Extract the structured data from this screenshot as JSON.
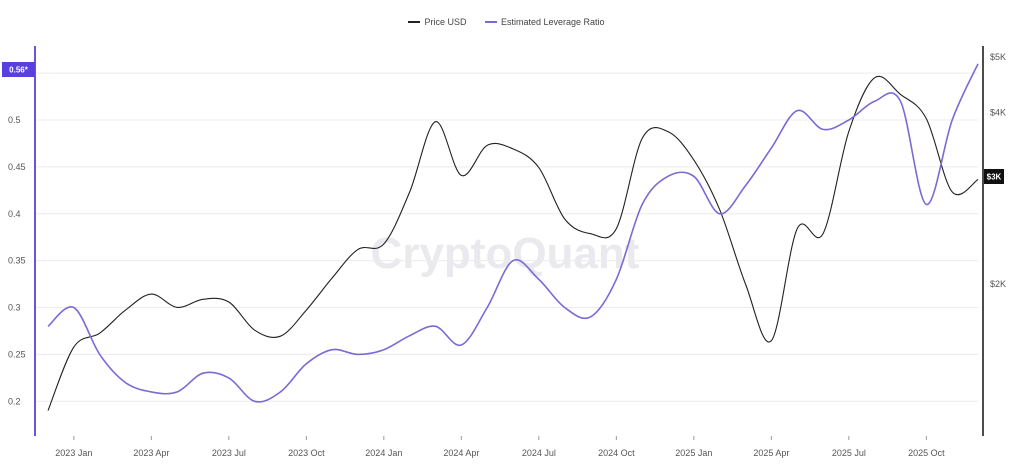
{
  "legend": {
    "price_label": "Price USD",
    "ratio_label": "Estimated Leverage Ratio"
  },
  "watermark": "CryptoQuant",
  "colors": {
    "price": "#222222",
    "ratio": "#7b6ad6",
    "badge": "#5a3fe0",
    "axis": "#6a55e0"
  },
  "chart_data": {
    "type": "line",
    "title": "",
    "x_ticks": [
      "2023 Jan",
      "2023 Apr",
      "2023 Jul",
      "2023 Oct",
      "2024 Jan",
      "2024 Apr",
      "2024 Jul",
      "2024 Oct",
      "2025 Jan",
      "2025 Apr",
      "2025 Jul",
      "2025 Oct"
    ],
    "x_range": [
      "2022-12",
      "2025-12"
    ],
    "y_left": {
      "label": "",
      "ylim": [
        0.163,
        0.58
      ],
      "ticks": [
        0.2,
        0.25,
        0.3,
        0.35,
        0.4,
        0.45,
        0.5,
        0.55
      ],
      "tick_labels": [
        "0.2",
        "0.25",
        "0.3",
        "0.35",
        "0.4",
        "0.45",
        "0.5",
        "0.55"
      ]
    },
    "y_right": {
      "label": "",
      "scale": "log",
      "ticks": [
        2000,
        3000,
        4000,
        5000
      ],
      "tick_labels": [
        "$2K",
        "$3K",
        "$4K",
        "$5K"
      ]
    },
    "current_ratio_badge": "0.56*",
    "current_price_badge": "$3K",
    "grid": "horizontal",
    "legend_position": "top",
    "series": [
      {
        "name": "Price USD",
        "axis": "right",
        "color": "#222222",
        "points": [
          [
            "2022-12",
            1200
          ],
          [
            "2023-01",
            1550
          ],
          [
            "2023-02",
            1640
          ],
          [
            "2023-03",
            1800
          ],
          [
            "2023-04",
            1920
          ],
          [
            "2023-05",
            1820
          ],
          [
            "2023-06",
            1880
          ],
          [
            "2023-07",
            1860
          ],
          [
            "2023-08",
            1660
          ],
          [
            "2023-09",
            1620
          ],
          [
            "2023-10",
            1800
          ],
          [
            "2023-11",
            2050
          ],
          [
            "2023-12",
            2300
          ],
          [
            "2024-01",
            2350
          ],
          [
            "2024-02",
            2900
          ],
          [
            "2024-03",
            3850
          ],
          [
            "2024-04",
            3100
          ],
          [
            "2024-05",
            3500
          ],
          [
            "2024-06",
            3450
          ],
          [
            "2024-07",
            3200
          ],
          [
            "2024-08",
            2600
          ],
          [
            "2024-09",
            2450
          ],
          [
            "2024-10",
            2500
          ],
          [
            "2024-11",
            3600
          ],
          [
            "2024-12",
            3700
          ],
          [
            "2025-01",
            3300
          ],
          [
            "2025-02",
            2700
          ],
          [
            "2025-03",
            2000
          ],
          [
            "2025-04",
            1590
          ],
          [
            "2025-05",
            2500
          ],
          [
            "2025-06",
            2450
          ],
          [
            "2025-07",
            3700
          ],
          [
            "2025-08",
            4600
          ],
          [
            "2025-09",
            4300
          ],
          [
            "2025-10",
            3900
          ],
          [
            "2025-11",
            2900
          ],
          [
            "2025-12",
            3050
          ]
        ]
      },
      {
        "name": "Estimated Leverage Ratio",
        "axis": "left",
        "color": "#7b6ad6",
        "points": [
          [
            "2022-12",
            0.28
          ],
          [
            "2023-01",
            0.3
          ],
          [
            "2023-02",
            0.25
          ],
          [
            "2023-03",
            0.22
          ],
          [
            "2023-04",
            0.21
          ],
          [
            "2023-05",
            0.21
          ],
          [
            "2023-06",
            0.23
          ],
          [
            "2023-07",
            0.225
          ],
          [
            "2023-08",
            0.2
          ],
          [
            "2023-09",
            0.21
          ],
          [
            "2023-10",
            0.24
          ],
          [
            "2023-11",
            0.255
          ],
          [
            "2023-12",
            0.25
          ],
          [
            "2024-01",
            0.255
          ],
          [
            "2024-02",
            0.27
          ],
          [
            "2024-03",
            0.28
          ],
          [
            "2024-04",
            0.26
          ],
          [
            "2024-05",
            0.3
          ],
          [
            "2024-06",
            0.35
          ],
          [
            "2024-07",
            0.33
          ],
          [
            "2024-08",
            0.3
          ],
          [
            "2024-09",
            0.29
          ],
          [
            "2024-10",
            0.33
          ],
          [
            "2024-11",
            0.41
          ],
          [
            "2024-12",
            0.44
          ],
          [
            "2025-01",
            0.44
          ],
          [
            "2025-02",
            0.4
          ],
          [
            "2025-03",
            0.43
          ],
          [
            "2025-04",
            0.47
          ],
          [
            "2025-05",
            0.51
          ],
          [
            "2025-06",
            0.49
          ],
          [
            "2025-07",
            0.5
          ],
          [
            "2025-08",
            0.52
          ],
          [
            "2025-09",
            0.52
          ],
          [
            "2025-10",
            0.41
          ],
          [
            "2025-11",
            0.5
          ],
          [
            "2025-12",
            0.56
          ]
        ]
      }
    ]
  }
}
